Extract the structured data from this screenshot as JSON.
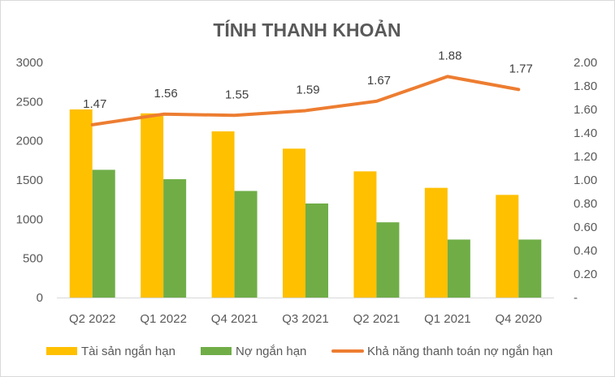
{
  "chart_data": {
    "type": "bar",
    "title": "TÍNH THANH KHOẢN",
    "categories": [
      "Q2 2022",
      "Q1 2022",
      "Q4 2021",
      "Q3 2021",
      "Q2 2021",
      "Q1 2021",
      "Q4 2020"
    ],
    "series": [
      {
        "name": "Tài sản ngắn hạn",
        "type": "bar",
        "axis": "left",
        "color": "#FFC000",
        "values": [
          2400,
          2350,
          2120,
          1900,
          1610,
          1400,
          1310
        ]
      },
      {
        "name": "Nợ ngắn hạn",
        "type": "bar",
        "axis": "left",
        "color": "#70AD47",
        "values": [
          1630,
          1510,
          1360,
          1200,
          960,
          740,
          740
        ]
      },
      {
        "name": "Khả năng thanh toán nợ ngắn hạn",
        "type": "line",
        "axis": "right",
        "color": "#ED7D31",
        "values": [
          1.47,
          1.56,
          1.55,
          1.59,
          1.67,
          1.88,
          1.77
        ],
        "data_labels": [
          "1.47",
          "1.56",
          "1.55",
          "1.59",
          "1.67",
          "1.88",
          "1.77"
        ]
      }
    ],
    "y_left": {
      "range": [
        0,
        3000
      ],
      "ticks": [
        0,
        500,
        1000,
        1500,
        2000,
        2500,
        3000
      ],
      "tick_labels": [
        "0",
        "500",
        "1000",
        "1500",
        "2000",
        "2500",
        "3000"
      ]
    },
    "y_right": {
      "range": [
        0,
        2
      ],
      "ticks": [
        0,
        0.2,
        0.4,
        0.6,
        0.8,
        1.0,
        1.2,
        1.4,
        1.6,
        1.8,
        2.0
      ],
      "tick_labels": [
        "-",
        "0.20",
        "0.40",
        "0.60",
        "0.80",
        "1.00",
        "1.20",
        "1.40",
        "1.60",
        "1.80",
        "2.00"
      ]
    },
    "grid": false,
    "legend_position": "bottom"
  }
}
